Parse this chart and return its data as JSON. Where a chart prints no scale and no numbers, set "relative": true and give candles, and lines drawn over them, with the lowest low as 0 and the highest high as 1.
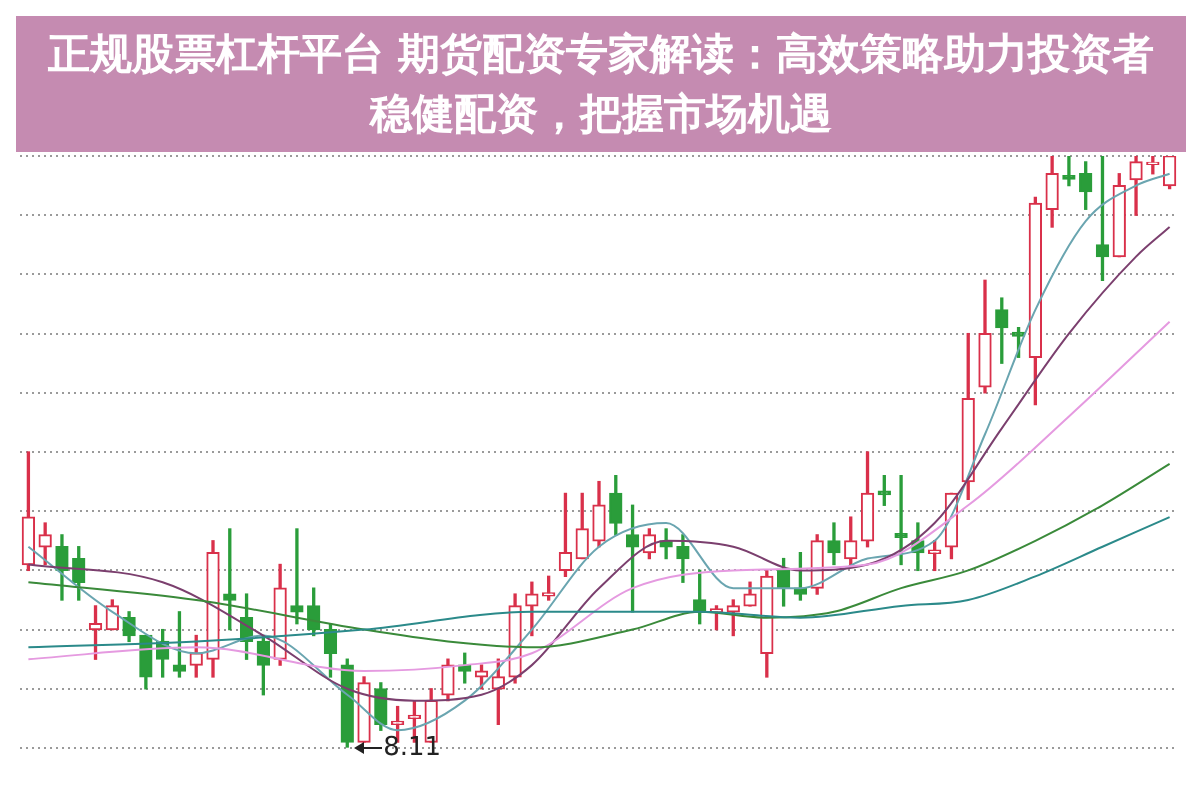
{
  "chart_data": {
    "type": "candlestick",
    "title": "正规股票杠杆平台 期货配资专家解读：高效策略助力投资者稳健配资，把握市场机遇",
    "relative": true,
    "grid": "y",
    "categories": [
      null,
      null,
      null,
      null,
      null,
      null,
      null,
      null,
      null,
      null,
      null,
      null,
      null,
      null,
      null,
      null,
      null,
      null,
      null,
      null,
      null,
      null,
      null,
      null,
      null,
      null,
      null,
      null,
      null,
      null,
      null,
      null,
      null,
      null,
      null,
      null,
      null,
      null,
      null,
      null,
      null,
      null,
      null,
      null,
      null,
      null,
      null,
      null,
      null,
      null,
      null,
      null,
      null,
      null,
      null,
      null,
      null,
      null,
      null,
      null,
      null,
      null,
      null,
      null,
      null,
      null,
      null,
      null,
      null
    ],
    "ohlc": [
      [
        0.31,
        0.5,
        0.3,
        0.39
      ],
      [
        0.34,
        0.38,
        0.31,
        0.36
      ],
      [
        0.34,
        0.36,
        0.25,
        0.3
      ],
      [
        0.32,
        0.34,
        0.25,
        0.28
      ],
      [
        0.2,
        0.24,
        0.15,
        0.21
      ],
      [
        0.2,
        0.25,
        0.2,
        0.24
      ],
      [
        0.22,
        0.23,
        0.18,
        0.19
      ],
      [
        0.19,
        0.19,
        0.1,
        0.12
      ],
      [
        0.18,
        0.2,
        0.12,
        0.15
      ],
      [
        0.14,
        0.23,
        0.12,
        0.13
      ],
      [
        0.14,
        0.19,
        0.12,
        0.16
      ],
      [
        0.15,
        0.35,
        0.12,
        0.33
      ],
      [
        0.26,
        0.37,
        0.2,
        0.25
      ],
      [
        0.22,
        0.26,
        0.15,
        0.18
      ],
      [
        0.18,
        0.19,
        0.09,
        0.14
      ],
      [
        0.15,
        0.31,
        0.14,
        0.27
      ],
      [
        0.24,
        0.37,
        0.21,
        0.23
      ],
      [
        0.24,
        0.27,
        0.19,
        0.2
      ],
      [
        0.2,
        0.21,
        0.12,
        0.16
      ],
      [
        0.14,
        0.15,
        0,
        0.01
      ],
      [
        0.01,
        0.12,
        0.01,
        0.11
      ],
      [
        0.1,
        0.11,
        0.03,
        0.04
      ],
      [
        0.04,
        0.07,
        0.01,
        0.045
      ],
      [
        0.05,
        0.08,
        0.01,
        0.055
      ],
      [
        0.01,
        0.1,
        0.01,
        0.08
      ],
      [
        0.09,
        0.15,
        0.08,
        0.14
      ],
      [
        0.14,
        0.16,
        0.11,
        0.13
      ],
      [
        0.12,
        0.14,
        0.1,
        0.13
      ],
      [
        0.1,
        0.15,
        0.04,
        0.12
      ],
      [
        0.12,
        0.26,
        0.11,
        0.24
      ],
      [
        0.24,
        0.28,
        0.19,
        0.26
      ],
      [
        0.257,
        0.29,
        0.25,
        0.262
      ],
      [
        0.3,
        0.43,
        0.29,
        0.33
      ],
      [
        0.32,
        0.43,
        0.32,
        0.37
      ],
      [
        0.35,
        0.45,
        0.34,
        0.41
      ],
      [
        0.43,
        0.46,
        0.36,
        0.38
      ],
      [
        0.36,
        0.41,
        0.23,
        0.34
      ],
      [
        0.33,
        0.37,
        0.32,
        0.36
      ],
      [
        0.35,
        0.37,
        0.32,
        0.34
      ],
      [
        0.34,
        0.36,
        0.28,
        0.32
      ],
      [
        0.25,
        0.3,
        0.21,
        0.23
      ],
      [
        0.229,
        0.24,
        0.2,
        0.235
      ],
      [
        0.23,
        0.25,
        0.19,
        0.24
      ],
      [
        0.24,
        0.28,
        0.24,
        0.26
      ],
      [
        0.16,
        0.3,
        0.12,
        0.29
      ],
      [
        0.3,
        0.32,
        0.24,
        0.27
      ],
      [
        0.27,
        0.33,
        0.25,
        0.26
      ],
      [
        0.27,
        0.36,
        0.26,
        0.35
      ],
      [
        0.35,
        0.38,
        0.31,
        0.33
      ],
      [
        0.32,
        0.39,
        0.31,
        0.35
      ],
      [
        0.35,
        0.5,
        0.34,
        0.43
      ],
      [
        0.434,
        0.46,
        0.41,
        0.428
      ],
      [
        0.362,
        0.46,
        0.31,
        0.356
      ],
      [
        0.35,
        0.38,
        0.3,
        0.33
      ],
      [
        0.329,
        0.35,
        0.3,
        0.334
      ],
      [
        0.34,
        0.43,
        0.32,
        0.43
      ],
      [
        0.45,
        0.7,
        0.42,
        0.59
      ],
      [
        0.61,
        0.79,
        0.6,
        0.7
      ],
      [
        0.74,
        0.76,
        0.65,
        0.71
      ],
      [
        0.702,
        0.71,
        0.66,
        0.696
      ],
      [
        0.66,
        0.93,
        0.58,
        0.92
      ],
      [
        0.91,
        1,
        0.88,
        0.97
      ],
      [
        0.967,
        1,
        0.95,
        0.961
      ],
      [
        0.97,
        0.99,
        0.91,
        0.94
      ],
      [
        0.85,
        1,
        0.79,
        0.83
      ],
      [
        0.83,
        0.97,
        0.83,
        0.95
      ],
      [
        0.96,
        1,
        0.9,
        0.99
      ],
      [
        0.986,
        1,
        0.97,
        0.989
      ],
      [
        0.95,
        1,
        0.945,
        1
      ]
    ],
    "colors": [
      "#d9304a",
      "#d9304a",
      "#2a9d3a",
      "#2a9d3a",
      "#d9304a",
      "#d9304a",
      "#2a9d3a",
      "#2a9d3a",
      "#2a9d3a",
      "#2a9d3a",
      "#d9304a",
      "#d9304a",
      "#2a9d3a",
      "#2a9d3a",
      "#2a9d3a",
      "#d9304a",
      "#2a9d3a",
      "#2a9d3a",
      "#2a9d3a",
      "#2a9d3a",
      "#d9304a",
      "#2a9d3a",
      "#d9304a",
      "#d9304a",
      "#d9304a",
      "#d9304a",
      "#2a9d3a",
      "#d9304a",
      "#d9304a",
      "#d9304a",
      "#d9304a",
      "#d9304a",
      "#d9304a",
      "#d9304a",
      "#d9304a",
      "#2a9d3a",
      "#2a9d3a",
      "#d9304a",
      "#2a9d3a",
      "#2a9d3a",
      "#2a9d3a",
      "#d9304a",
      "#d9304a",
      "#d9304a",
      "#d9304a",
      "#2a9d3a",
      "#2a9d3a",
      "#d9304a",
      "#2a9d3a",
      "#d9304a",
      "#d9304a",
      "#2a9d3a",
      "#2a9d3a",
      "#2a9d3a",
      "#d9304a",
      "#d9304a",
      "#d9304a",
      "#d9304a",
      "#2a9d3a",
      "#2a9d3a",
      "#d9304a",
      "#d9304a",
      "#2a9d3a",
      "#2a9d3a",
      "#2a9d3a",
      "#d9304a",
      "#d9304a",
      "#d9304a",
      "#d9304a"
    ],
    "series": [
      {
        "type": "line",
        "color": "#6aa5b0",
        "values": [
          0.34,
          null,
          null,
          null,
          null,
          0.23,
          null,
          null,
          null,
          null,
          0.16,
          null,
          null,
          null,
          0.19,
          null,
          null,
          null,
          null,
          0.09,
          null,
          null,
          0.03,
          null,
          null,
          null,
          0.08,
          null,
          null,
          null,
          0.2,
          null,
          null,
          null,
          0.34,
          null,
          null,
          null,
          0.38,
          null,
          null,
          null,
          0.27,
          null,
          null,
          null,
          0.27,
          null,
          null,
          null,
          0.32,
          null,
          null,
          null,
          0.35,
          null,
          null,
          0.53,
          null,
          null,
          0.74,
          null,
          null,
          0.89,
          null,
          null,
          0.95,
          null,
          0.97
        ]
      },
      {
        "type": "line",
        "color": "#7b3f6e",
        "values": [
          0.31,
          null,
          null,
          null,
          null,
          null,
          null,
          null,
          0.28,
          null,
          null,
          null,
          null,
          null,
          0.19,
          null,
          null,
          null,
          null,
          0.1,
          null,
          null,
          null,
          0.08,
          null,
          null,
          null,
          0.09,
          null,
          null,
          0.14,
          null,
          null,
          null,
          0.27,
          null,
          null,
          null,
          0.35,
          null,
          null,
          null,
          0.34,
          null,
          null,
          null,
          0.3,
          null,
          null,
          null,
          0.31,
          null,
          null,
          null,
          0.38,
          null,
          null,
          null,
          0.54,
          null,
          null,
          null,
          0.7,
          null,
          null,
          null,
          0.83,
          null,
          0.88
        ]
      },
      {
        "type": "line",
        "color": "#e59ae0",
        "values": [
          0.15,
          null,
          null,
          null,
          null,
          null,
          null,
          null,
          null,
          null,
          0.17,
          null,
          null,
          null,
          null,
          null,
          null,
          null,
          null,
          null,
          0.13,
          null,
          null,
          null,
          null,
          null,
          0.14,
          null,
          null,
          null,
          0.16,
          null,
          null,
          null,
          null,
          null,
          0.27,
          null,
          null,
          null,
          null,
          null,
          0.3,
          null,
          null,
          null,
          null,
          null,
          null,
          null,
          0.31,
          null,
          null,
          null,
          null,
          null,
          0.41,
          null,
          null,
          null,
          null,
          null,
          0.56,
          null,
          null,
          null,
          null,
          null,
          0.72
        ]
      },
      {
        "type": "line",
        "color": "#3a8a3a",
        "values": [
          0.28,
          null,
          null,
          null,
          null,
          null,
          null,
          null,
          null,
          null,
          0.25,
          null,
          null,
          null,
          null,
          null,
          null,
          null,
          null,
          null,
          0.2,
          null,
          null,
          null,
          null,
          0.18,
          null,
          null,
          null,
          null,
          0.17,
          null,
          null,
          null,
          null,
          null,
          0.2,
          null,
          null,
          null,
          0.23,
          null,
          null,
          null,
          0.22,
          null,
          null,
          null,
          0.23,
          null,
          null,
          null,
          0.27,
          null,
          null,
          null,
          0.3,
          null,
          null,
          null,
          0.35,
          null,
          null,
          null,
          0.41,
          null,
          null,
          null,
          0.48
        ]
      },
      {
        "type": "line",
        "color": "#2b8a8a",
        "values": [
          0.17,
          null,
          null,
          null,
          null,
          null,
          null,
          null,
          null,
          null,
          0.18,
          null,
          null,
          null,
          null,
          null,
          null,
          null,
          null,
          null,
          0.2,
          null,
          null,
          null,
          null,
          null,
          null,
          null,
          null,
          null,
          0.23,
          null,
          null,
          null,
          null,
          null,
          null,
          null,
          null,
          null,
          0.23,
          null,
          null,
          null,
          null,
          null,
          0.22,
          null,
          null,
          null,
          null,
          null,
          0.24,
          null,
          null,
          null,
          0.25,
          null,
          null,
          null,
          0.29,
          null,
          null,
          null,
          0.34,
          null,
          null,
          null,
          0.39
        ]
      }
    ],
    "annotations": [
      {
        "text": "8.11",
        "y": 0
      }
    ]
  }
}
